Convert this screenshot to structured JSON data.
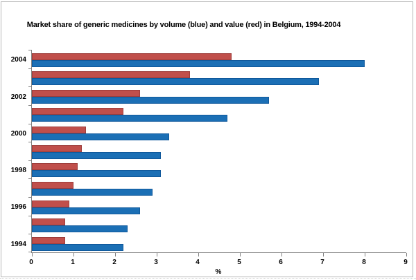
{
  "chart_data": {
    "type": "bar",
    "orientation": "horizontal",
    "title": "Market share of generic medicines by volume (blue) and value (red) in Belgium, 1994-2004",
    "xlabel": "%",
    "xlim": [
      0,
      9
    ],
    "xticks": [
      "0",
      "1",
      "2",
      "3",
      "4",
      "5",
      "6",
      "7",
      "8",
      "9"
    ],
    "grid": false,
    "legend": "none",
    "categories_top_to_bottom": [
      "2004",
      "2003",
      "2002",
      "2001",
      "2000",
      "1999",
      "1998",
      "1997",
      "1996",
      "1995",
      "1994"
    ],
    "ytick_labels": [
      {
        "label": "2004",
        "category_index": 0
      },
      {
        "label": "2002",
        "category_index": 2
      },
      {
        "label": "2000",
        "category_index": 4
      },
      {
        "label": "1998",
        "category_index": 6
      },
      {
        "label": "1996",
        "category_index": 8
      },
      {
        "label": "1994",
        "category_index": 10
      }
    ],
    "bar_order_in_category_top_to_bottom": [
      "value (red)",
      "volume (blue)"
    ],
    "series": [
      {
        "name": "value (red)",
        "color": "#c04f4b",
        "border_color": "#9e3d3b",
        "values": [
          4.8,
          3.8,
          2.6,
          2.2,
          1.3,
          1.2,
          1.1,
          1.0,
          0.9,
          0.8,
          0.8
        ]
      },
      {
        "name": "volume (blue)",
        "color": "#1b6fb5",
        "border_color": "#10599c",
        "values": [
          8.0,
          6.9,
          5.7,
          4.7,
          3.3,
          3.1,
          3.1,
          2.9,
          2.6,
          2.3,
          2.2
        ]
      }
    ]
  },
  "colors": {
    "background": "#ffffff",
    "axis": "#808080",
    "text": "#000000",
    "frame_border": "#b5b5b5"
  }
}
